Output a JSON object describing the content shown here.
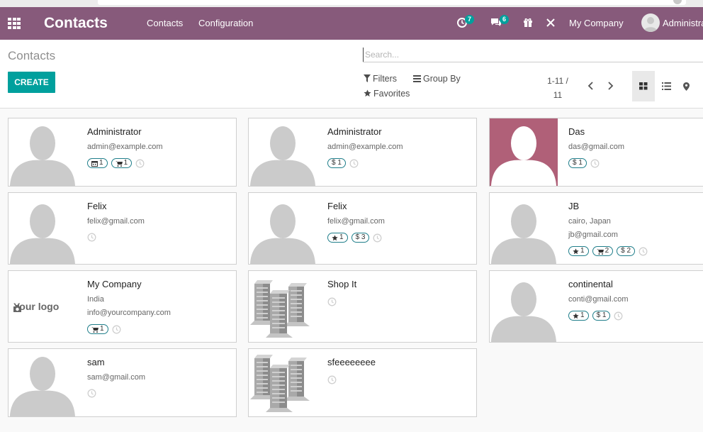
{
  "navbar": {
    "brand": "Contacts",
    "menu": [
      "Contacts",
      "Configuration"
    ],
    "activity_count": "7",
    "message_count": "6",
    "company": "My Company",
    "user": "Administrator"
  },
  "control_panel": {
    "breadcrumb": "Contacts",
    "create_label": "CREATE",
    "search_placeholder": "Search...",
    "filters_label": "Filters",
    "group_by_label": "Group By",
    "favorites_label": "Favorites",
    "pager_range": "1-11 /",
    "pager_total": "11",
    "views": [
      "kanban-icon",
      "list-icon",
      "map-marker-icon"
    ]
  },
  "colors": {
    "navbar": "#875a7b",
    "primary": "#00a09d",
    "tag_border": "#1f7e8a",
    "das_avatar_bg": "#b06078"
  },
  "contacts": [
    {
      "name": "Administrator",
      "lines": [
        "admin@example.com"
      ],
      "tags": [
        {
          "icon": "calendar-icon",
          "count": "1"
        },
        {
          "icon": "cart-icon",
          "count": "1"
        }
      ],
      "image": "person"
    },
    {
      "name": "Administrator",
      "lines": [
        "admin@example.com"
      ],
      "tags": [
        {
          "icon": "dollar",
          "count": "1"
        }
      ],
      "image": "person"
    },
    {
      "name": "Das",
      "lines": [
        "das@gmail.com"
      ],
      "tags": [
        {
          "icon": "dollar",
          "count": "1"
        }
      ],
      "image": "person-colored"
    },
    {
      "name": "Felix",
      "lines": [
        "felix@gmail.com"
      ],
      "tags": [],
      "image": "person"
    },
    {
      "name": "Felix",
      "lines": [
        "felix@gmail.com"
      ],
      "tags": [
        {
          "icon": "star-icon",
          "count": "1"
        },
        {
          "icon": "dollar",
          "count": "3"
        }
      ],
      "image": "person"
    },
    {
      "name": "JB",
      "lines": [
        "cairo, Japan",
        "jb@gmail.com"
      ],
      "tags": [
        {
          "icon": "star-icon",
          "count": "1"
        },
        {
          "icon": "cart-icon",
          "count": "2"
        },
        {
          "icon": "dollar",
          "count": "2"
        }
      ],
      "image": "person"
    },
    {
      "name": "My Company",
      "lines": [
        "India",
        "info@yourcompany.com"
      ],
      "tags": [
        {
          "icon": "cart-icon",
          "count": "1"
        }
      ],
      "image": "logo",
      "logo_text": "Your logo"
    },
    {
      "name": "Shop It",
      "lines": [],
      "tags": [],
      "image": "buildings"
    },
    {
      "name": "continental",
      "lines": [
        "conti@gmail.com"
      ],
      "tags": [
        {
          "icon": "star-icon",
          "count": "1"
        },
        {
          "icon": "dollar",
          "count": "1"
        }
      ],
      "image": "person"
    },
    {
      "name": "sam",
      "lines": [
        "sam@gmail.com"
      ],
      "tags": [],
      "image": "person"
    },
    {
      "name": "sfeeeeeeee",
      "lines": [],
      "tags": [],
      "image": "buildings"
    }
  ]
}
